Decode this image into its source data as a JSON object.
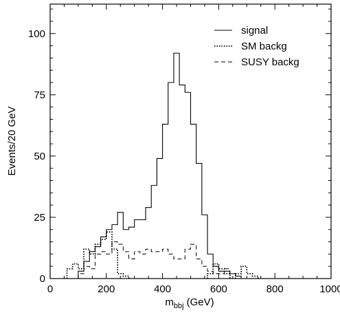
{
  "chart_data": {
    "type": "line",
    "drawstyle": "steps",
    "title": "",
    "xlabel": "m",
    "xlabel_sub": "bbj",
    "xlabel_unit": "(GeV)",
    "ylabel": "Events/20 GeV",
    "xlim": [
      0,
      1000
    ],
    "ylim": [
      0,
      112
    ],
    "x_ticks": [
      0,
      200,
      400,
      600,
      800,
      1000
    ],
    "y_ticks": [
      0,
      25,
      50,
      75,
      100
    ],
    "grid": false,
    "legend_position": "top-right",
    "bin_width": 20,
    "series": [
      {
        "name": "signal",
        "style": "solid",
        "bins": [
          [
            100,
            120,
            3
          ],
          [
            120,
            140,
            7
          ],
          [
            140,
            160,
            11
          ],
          [
            160,
            180,
            13
          ],
          [
            180,
            200,
            17
          ],
          [
            200,
            220,
            20
          ],
          [
            220,
            240,
            22
          ],
          [
            240,
            260,
            27
          ],
          [
            260,
            280,
            20
          ],
          [
            280,
            300,
            21
          ],
          [
            300,
            320,
            24
          ],
          [
            320,
            340,
            24
          ],
          [
            340,
            360,
            29
          ],
          [
            360,
            380,
            38
          ],
          [
            380,
            400,
            49
          ],
          [
            400,
            420,
            63
          ],
          [
            420,
            440,
            80
          ],
          [
            440,
            460,
            92
          ],
          [
            460,
            480,
            79
          ],
          [
            480,
            500,
            76
          ],
          [
            500,
            520,
            63
          ],
          [
            520,
            540,
            47
          ],
          [
            540,
            560,
            26
          ],
          [
            560,
            580,
            10
          ],
          [
            580,
            600,
            5
          ],
          [
            600,
            620,
            3
          ],
          [
            620,
            640,
            3
          ],
          [
            640,
            660,
            2
          ],
          [
            660,
            680,
            1
          ]
        ]
      },
      {
        "name": "SM backg",
        "style": "dotted",
        "bins": [
          [
            60,
            80,
            4
          ],
          [
            80,
            100,
            6
          ],
          [
            100,
            120,
            4
          ],
          [
            120,
            140,
            12
          ],
          [
            140,
            160,
            10
          ],
          [
            160,
            180,
            14
          ],
          [
            180,
            200,
            16
          ],
          [
            200,
            220,
            19
          ],
          [
            220,
            240,
            12
          ],
          [
            240,
            260,
            2
          ],
          [
            260,
            280,
            1
          ],
          [
            560,
            580,
            2
          ],
          [
            580,
            600,
            6
          ],
          [
            600,
            620,
            4
          ],
          [
            620,
            640,
            2
          ],
          [
            660,
            680,
            2
          ],
          [
            680,
            700,
            5
          ],
          [
            700,
            720,
            2
          ],
          [
            720,
            740,
            1
          ]
        ]
      },
      {
        "name": "SUSY backg",
        "style": "dashed",
        "bins": [
          [
            100,
            120,
            2
          ],
          [
            120,
            140,
            5
          ],
          [
            140,
            160,
            4
          ],
          [
            160,
            180,
            10
          ],
          [
            180,
            200,
            11
          ],
          [
            200,
            220,
            10
          ],
          [
            220,
            240,
            15
          ],
          [
            240,
            260,
            14
          ],
          [
            260,
            280,
            11
          ],
          [
            280,
            300,
            8
          ],
          [
            300,
            320,
            11
          ],
          [
            320,
            340,
            10
          ],
          [
            340,
            360,
            12
          ],
          [
            360,
            380,
            11
          ],
          [
            380,
            400,
            11
          ],
          [
            400,
            420,
            12
          ],
          [
            420,
            440,
            10
          ],
          [
            440,
            460,
            8
          ],
          [
            460,
            480,
            8
          ],
          [
            480,
            500,
            12
          ],
          [
            500,
            520,
            14
          ],
          [
            520,
            540,
            8
          ],
          [
            540,
            560,
            5
          ],
          [
            560,
            580,
            3
          ],
          [
            580,
            600,
            2
          ],
          [
            600,
            620,
            2
          ],
          [
            620,
            640,
            4
          ],
          [
            640,
            660,
            2
          ],
          [
            660,
            680,
            1
          ]
        ]
      }
    ]
  }
}
